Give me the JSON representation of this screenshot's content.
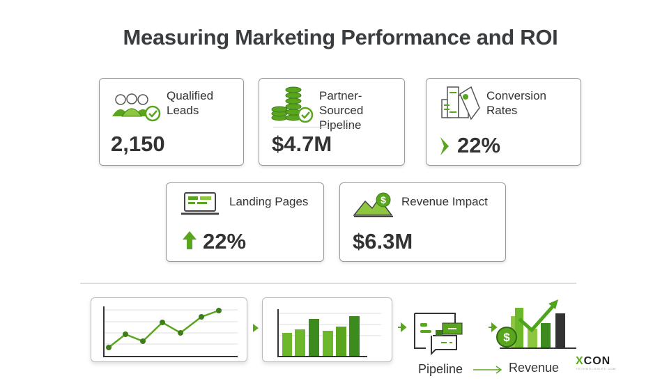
{
  "title": "Measuring Marketing Performance and ROI",
  "metrics": [
    {
      "label_line1": "Qualified",
      "label_line2": "Leads",
      "value": "2,150",
      "icon": "users-check-icon"
    },
    {
      "label_line1": "Partner-Sourced",
      "label_line2": "Pipeline",
      "value": "$4.7M",
      "icon": "coins-check-icon"
    },
    {
      "label_line1": "Conversion",
      "label_line2": "Rates",
      "value": "22%",
      "icon": "documents-hand-icon",
      "indicator": "chevron-right-icon"
    },
    {
      "label_line1": "Landing Pages",
      "value": "22%",
      "icon": "laptop-icon",
      "indicator": "arrow-up-icon"
    },
    {
      "label_line1": "Revenue Impact",
      "value": "$6.3M",
      "icon": "mountain-dollar-icon"
    }
  ],
  "flow": {
    "from": "Pipeline",
    "to": "Revenue"
  },
  "logo": {
    "name_prefix": "X",
    "name_rest": "CON",
    "sub": "TECHNOLOGIES.COM"
  },
  "colors": {
    "green": "#5aa51e",
    "dark_green": "#3d7d1a",
    "light_green": "#8dc63f",
    "text": "#333333"
  }
}
